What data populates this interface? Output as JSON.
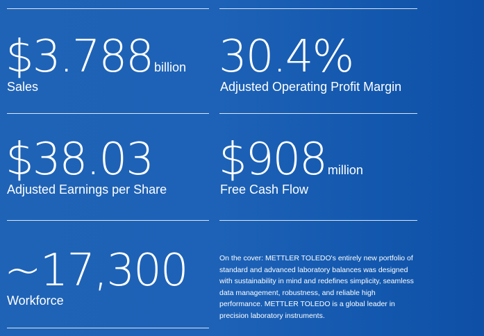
{
  "stats": {
    "sales": {
      "value": "$3.788",
      "unit": "billion",
      "label": "Sales"
    },
    "margin": {
      "value": "30.4%",
      "label": "Adjusted Operating Profit Margin"
    },
    "eps": {
      "value": "$38.03",
      "label": "Adjusted Earnings per Share"
    },
    "fcf": {
      "value": "$908",
      "unit": "million",
      "label": "Free Cash Flow"
    },
    "workforce": {
      "value": "~17,300",
      "label": "Workforce"
    }
  },
  "cover_note": "On the cover: METTLER TOLEDO's entirely new portfolio of standard and advanced laboratory balances was designed with sustainability in mind and redefines simplicity, seamless data management, robustness, and reliable high performance. METTLER TOLEDO is a global leader in precision laboratory instruments.",
  "colors": {
    "background_start": "#1f63b6",
    "background_end": "#0f4fa6",
    "text": "#ffffff"
  }
}
